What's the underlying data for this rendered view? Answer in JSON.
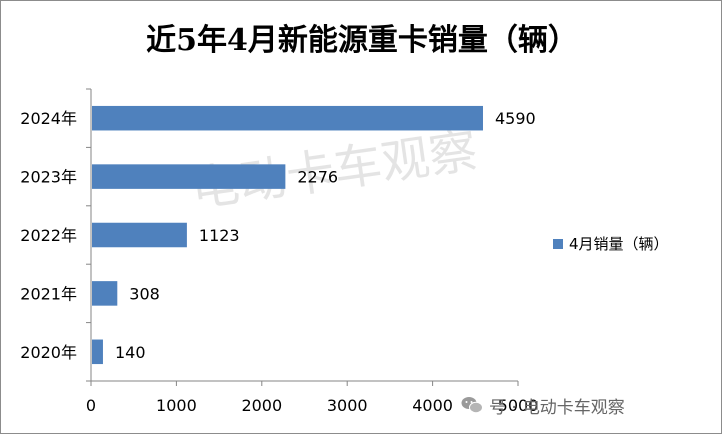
{
  "title": "近5年4月新能源重卡销量（辆）",
  "watermark": "电动卡车观察",
  "footer": {
    "prefix": "号 ·",
    "name": "电动卡车观察"
  },
  "colors": {
    "bar": "#4f81bd",
    "axis": "#868686",
    "text": "#000000"
  },
  "chart_data": {
    "type": "bar",
    "orientation": "horizontal",
    "title": "近5年4月新能源重卡销量（辆）",
    "categories": [
      "2024年",
      "2023年",
      "2022年",
      "2021年",
      "2020年"
    ],
    "series": [
      {
        "name": "4月销量（辆）",
        "values": [
          4590,
          2276,
          1123,
          308,
          140
        ]
      }
    ],
    "xlim": [
      0,
      5000
    ],
    "xticks": [
      "0",
      "1000",
      "2000",
      "3000",
      "4000",
      "5000"
    ],
    "legend": "right",
    "grid": false
  }
}
